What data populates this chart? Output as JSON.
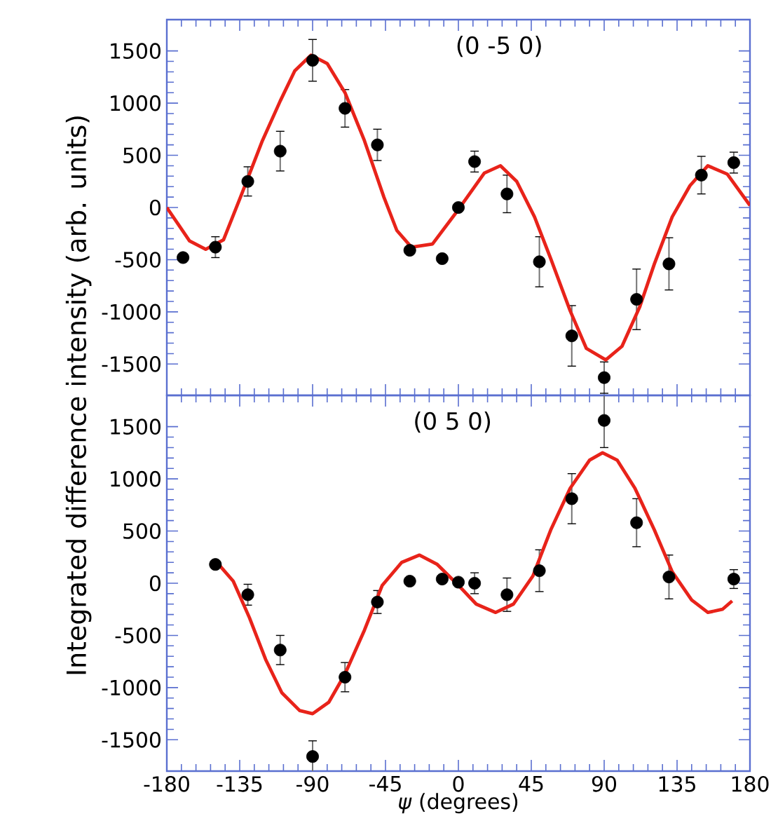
{
  "chart_data": [
    {
      "type": "scatter",
      "ylabel": "Integrated difference intensity (arb. units)",
      "annotations": [
        "(0 -5 0)"
      ],
      "xlim": [
        -180,
        180
      ],
      "ylim": [
        -1800,
        1800
      ],
      "xticks": [
        -180,
        -135,
        -90,
        -45,
        0,
        45,
        90,
        135,
        180
      ],
      "yticks": [
        -1500,
        -1000,
        -500,
        0,
        500,
        1000,
        1500
      ],
      "tick_labels": "y",
      "grid": false,
      "series": [
        {
          "color": "#000000",
          "marker": "circle",
          "x": [
            -170,
            -150,
            -130,
            -110,
            -90,
            -70,
            -50,
            -30,
            -10,
            0,
            10,
            30,
            50,
            70,
            90,
            110,
            130,
            150,
            170
          ],
          "values": [
            -480,
            -380,
            250,
            540,
            1410,
            950,
            600,
            -410,
            -490,
            0,
            440,
            130,
            -520,
            -1230,
            -1630,
            -880,
            -540,
            310,
            430
          ],
          "errors": [
            null,
            100,
            140,
            190,
            200,
            180,
            150,
            30,
            null,
            null,
            100,
            180,
            240,
            290,
            150,
            290,
            250,
            180,
            100
          ]
        },
        {
          "type": "line",
          "color": "#e8231a",
          "marker": "none",
          "line_style": "solid",
          "x": [
            -180,
            -166,
            -156,
            -145,
            -134,
            -121,
            -110,
            -101,
            -91,
            -81,
            -70,
            -58,
            -46,
            -38,
            -29,
            -16,
            0,
            16,
            26,
            36,
            47,
            57,
            69,
            79,
            91,
            101,
            112,
            121,
            132,
            143,
            154,
            166,
            180
          ],
          "values": [
            0,
            -320,
            -400,
            -310,
            120,
            640,
            1020,
            1310,
            1460,
            1380,
            1100,
            640,
            100,
            -220,
            -380,
            -350,
            -20,
            330,
            400,
            250,
            -90,
            -490,
            -990,
            -1350,
            -1460,
            -1330,
            -950,
            -540,
            -90,
            210,
            400,
            320,
            20
          ]
        }
      ]
    },
    {
      "type": "scatter",
      "xlabel": "*ψ* (degrees)",
      "annotations": [
        "(0 5 0)"
      ],
      "xlim": [
        -180,
        180
      ],
      "ylim": [
        -1800,
        1800
      ],
      "xticks": [
        -180,
        -135,
        -90,
        -45,
        0,
        45,
        90,
        135,
        180
      ],
      "yticks": [
        -1500,
        -1000,
        -500,
        0,
        500,
        1000,
        1500
      ],
      "grid": false,
      "series": [
        {
          "color": "#000000",
          "marker": "circle",
          "x": [
            -150,
            -130,
            -110,
            -90,
            -70,
            -50,
            -30,
            -10,
            0,
            10,
            30,
            50,
            70,
            90,
            110,
            130,
            170
          ],
          "values": [
            180,
            -110,
            -640,
            -1660,
            -900,
            -180,
            20,
            40,
            10,
            0,
            -110,
            120,
            810,
            1560,
            580,
            60,
            40
          ],
          "errors": [
            null,
            100,
            140,
            150,
            140,
            110,
            null,
            null,
            null,
            100,
            160,
            200,
            240,
            260,
            230,
            210,
            90
          ]
        },
        {
          "type": "line",
          "color": "#e8231a",
          "marker": "none",
          "line_style": "solid",
          "x": [
            -148,
            -139,
            -129,
            -119,
            -109,
            -98,
            -90,
            -80,
            -70,
            -58,
            -47,
            -35,
            -24,
            -13,
            0,
            11,
            23,
            34,
            46,
            57,
            69,
            81,
            89,
            98,
            109,
            121,
            132,
            144,
            154,
            163,
            169
          ],
          "values": [
            180,
            20,
            -330,
            -730,
            -1050,
            -1220,
            -1250,
            -1140,
            -870,
            -450,
            -20,
            200,
            270,
            180,
            -20,
            -200,
            -280,
            -200,
            70,
            510,
            910,
            1180,
            1250,
            1180,
            910,
            510,
            110,
            -160,
            -280,
            -250,
            -170
          ]
        }
      ]
    }
  ]
}
